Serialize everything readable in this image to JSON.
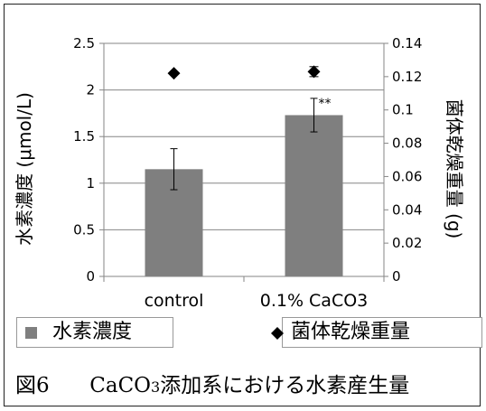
{
  "chart_data": {
    "type": "bar",
    "categories": [
      "control",
      "0.1%  CaCO3"
    ],
    "series": [
      {
        "name": "水素濃度",
        "axis": "left",
        "style": "bar",
        "color": "#7f7f7f",
        "values": [
          1.15,
          1.73
        ],
        "error": [
          0.22,
          0.18
        ]
      },
      {
        "name": "菌体乾燥重量",
        "axis": "right",
        "style": "marker-diamond",
        "color": "#000000",
        "values": [
          0.122,
          0.123
        ],
        "error": [
          0.0,
          0.003
        ]
      }
    ],
    "annotations": [
      {
        "category": 1,
        "text": "**"
      }
    ],
    "ylabel": "水素濃度 (μmol/L)",
    "y2label": "菌体乾燥重量 (g)",
    "ylim": [
      0,
      2.5
    ],
    "y2lim": [
      0,
      0.14
    ],
    "yticks": [
      "0",
      "0.5",
      "1",
      "1.5",
      "2",
      "2.5"
    ],
    "y2ticks": [
      "0",
      "0.02",
      "0.04",
      "0.06",
      "0.08",
      "0.1",
      "0.12",
      "0.14"
    ],
    "grid": true,
    "legend_position": "bottom"
  },
  "legend": {
    "item1": "水素濃度",
    "item2": "菌体乾燥重量"
  },
  "caption": {
    "label": "図6",
    "text_pre": "CaCO",
    "text_sub": "3",
    "text_post": "添加系における水素産生量"
  }
}
